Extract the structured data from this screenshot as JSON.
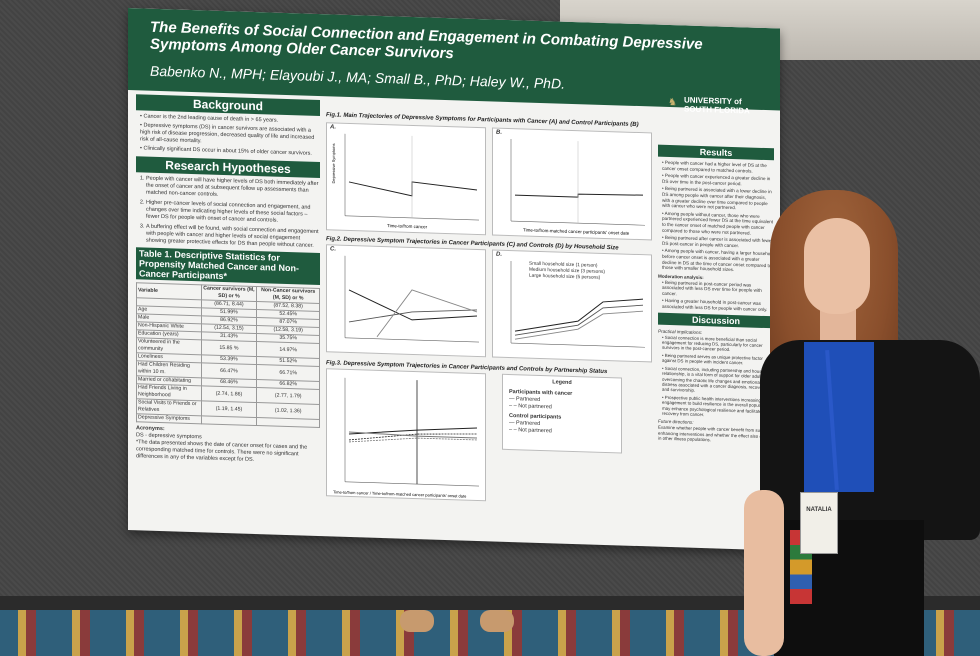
{
  "poster": {
    "title": "The Benefits of Social Connection and Engagement in Combating Depressive Symptoms Among Older Cancer Survivors",
    "authors": "Babenko N., MPH; Elayoubi J., MA; Small B., PhD; Haley W., PhD.",
    "logo_line1": "UNIVERSITY of",
    "logo_line2": "SOUTH FLORIDA",
    "background": {
      "heading": "Background",
      "items": [
        "Cancer is the 2nd leading cause of death in > 65 years.",
        "Depressive symptoms (DS) in cancer survivors are associated with a high risk of disease progression, decreased quality of life and increased risk of all-cause mortality.",
        "Clinically significant DS occur in about 15% of older cancer survivors."
      ]
    },
    "hypotheses": {
      "heading": "Research Hypotheses",
      "items": [
        "People with cancer will have higher levels of DS both immediately after the onset of cancer and at subsequent follow up assessments than matched non-cancer controls.",
        "Higher pre-cancer levels of social connection and engagement, and changes over time indicating higher levels of these social factors – fewer DS for people with onset of cancer and controls.",
        "A buffering effect will be found, with social connection and engagement with people with cancer and higher levels of social engagement showing greater protective effects for DS than people without cancer."
      ]
    },
    "table1": {
      "title": "Table 1. Descriptive Statistics for Propensity Matched Cancer and Non-Cancer Participants*",
      "headers": [
        "Variable",
        "Cancer survivors (M, SD) or %",
        "Non-Cancer survivors (M, SD) or %"
      ],
      "rows": [
        [
          "",
          "(86.71, 8.44)",
          "(87.52, 8.38)"
        ],
        [
          "Age",
          "51.99%",
          "52.45%"
        ],
        [
          "Male",
          "86.92%",
          "87.07%"
        ],
        [
          "Non-Hispanic White",
          "(12.54, 3.15)",
          "(12.58, 3.19)"
        ],
        [
          "Education (years)",
          "31.43%",
          "35.75%"
        ],
        [
          "Volunteered in the community",
          "15.85 %",
          "14.97%"
        ],
        [
          "Loneliness",
          "53.39%",
          "51.52%"
        ],
        [
          "Had Children Residing within 10 m.",
          "66.47%",
          "66.71%"
        ],
        [
          "Married or cohabitating",
          "68.46%",
          "66.82%"
        ],
        [
          "Had Friends Living in Neighborhood",
          "(2.74, 1.86)",
          "(2.77, 1.79)"
        ],
        [
          "Social Visits to Friends or Relatives",
          "(1.19, 1.45)",
          "(1.02, 1.36)"
        ],
        [
          "Depressive Symptoms",
          "",
          ""
        ]
      ],
      "acronyms_heading": "Acronyms:",
      "acronyms": "DS - depressive symptoms",
      "footnote": "*The data presented shows the date of cancer onset for cases and the corresponding matched time for controls. There were no significant differences in any of the variables except for DS."
    },
    "fig1": {
      "title": "Fig.1. Main Trajectories of Depressive Symptoms for Participants with Cancer (A) and Control Participants (B)",
      "panel_a": "A.",
      "panel_b": "B.",
      "xlabel_a": "Time-to/from cancer",
      "xlabel_b": "Time-to/from-matched cancer participants' onset date",
      "ylabel": "Depressive Symptoms"
    },
    "fig2": {
      "title": "Fig.2. Depressive Symptom Trajectories in Cancer Participants (C) and Controls (D) by Household Size",
      "panel_c": "C.",
      "panel_d": "D.",
      "legend": [
        "Small household size (1 person)",
        "Medium household size (3 persons)",
        "Large household size (5 persons)"
      ]
    },
    "fig3": {
      "title": "Fig.3. Depressive Symptom Trajectories in Cancer Participants and Controls by Partnership Status",
      "xlabel": "Time-to/from cancer  /  Time-to/from-matched cancer participants' onset date",
      "legend_heading": "Legend",
      "group1": "Participants with cancer",
      "group2": "Control participants",
      "partnered": "Partnered",
      "not_partnered": "Not partnered"
    },
    "results": {
      "heading": "Results",
      "items": [
        "People with cancer had a higher level of DS at the cancer onset compared to matched controls.",
        "People with cancer experienced a greater decline in DS over time in the post-cancer period.",
        "Being partnered is associated with a lower decline in DS among people with cancer after their diagnosis, with a greater decline over time compared to people with cancer who were not partnered.",
        "Among people without cancer, those who were partnered experienced fewer DS at the time equivalent to the cancer onset of matched people with cancer compared to those who were not partnered.",
        "Being partnered after cancer is associated with fewer DS post-cancer in people with cancer.",
        "Among people with cancer, having a larger household before cancer onset is associated with a greater decline in DS at the time of cancer onset compared to those with smaller household sizes."
      ],
      "moderation_heading": "Moderation analysis:",
      "moderation": [
        "Being partnered in post-cancer period was associated with less DS over time for people with cancer.",
        "Having a greater household in post-cancer was associated with less DS for people with cancer only."
      ]
    },
    "discussion": {
      "heading": "Discussion",
      "practical_heading": "Practical implications:",
      "items": [
        "Social connection is more beneficial than social engagement for reducing DS, particularly for cancer survivors in the post-cancer period.",
        "Being partnered serves as unique protective factor against DS in people with incident cancer.",
        "Social connection, including partnership and household relationship, is a vital form of support for older adults overcoming the chaotic life changes and emotional distress associated with a cancer diagnosis, recovery, and survivorship.",
        "Prospective public health interventions increasing social engagement to build resilience in the overall population may enhance psychological resilience and facilitate recovery from cancer."
      ],
      "future_heading": "Future directions:",
      "future": "Examine whether people with cancer benefit from support-enhancing interventions and whether the effect also occurs in other illness populations."
    }
  },
  "badge": {
    "name": "NATALIA"
  },
  "colors": {
    "poster_green": "#1f5b3e",
    "shirt_blue": "#1f4fb8"
  }
}
